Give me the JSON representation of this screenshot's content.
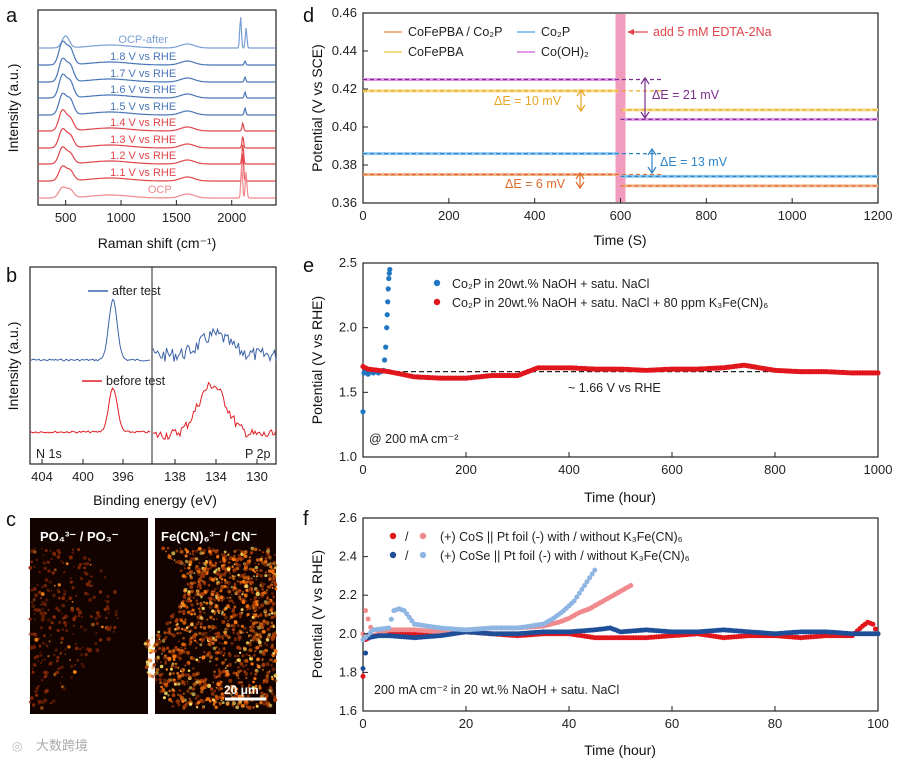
{
  "panels": {
    "a": "a",
    "b": "b",
    "c": "c",
    "d": "d",
    "e": "e",
    "f": "f"
  },
  "watermark": "大数跨境",
  "chart_data": [
    {
      "id": "a",
      "type": "line",
      "xlabel": "Raman shift (cm⁻¹)",
      "ylabel": "Intensity (a.u.)",
      "xlim": [
        250,
        2400
      ],
      "xticks": [
        500,
        1000,
        1500,
        2000
      ],
      "series": [
        {
          "name": "OCP-after",
          "color": "#7a9fd4",
          "peaks": [
            [
              500,
              12
            ],
            [
              2080,
              32
            ],
            [
              2130,
              20
            ]
          ]
        },
        {
          "name": "1.8 V vs RHE",
          "color": "#4a76b8",
          "peaks": [
            [
              470,
              22
            ],
            [
              540,
              16
            ],
            [
              2120,
              4
            ]
          ]
        },
        {
          "name": "1.7 V vs RHE",
          "color": "#4a76b8",
          "peaks": [
            [
              470,
              22
            ],
            [
              540,
              16
            ],
            [
              2120,
              5
            ]
          ]
        },
        {
          "name": "1.6 V vs RHE",
          "color": "#4a76b8",
          "peaks": [
            [
              470,
              22
            ],
            [
              540,
              16
            ],
            [
              2120,
              6
            ]
          ]
        },
        {
          "name": "1.5 V vs RHE",
          "color": "#4a76b8",
          "peaks": [
            [
              470,
              20
            ],
            [
              540,
              15
            ],
            [
              2120,
              7
            ]
          ]
        },
        {
          "name": "1.4 V vs RHE",
          "color": "#e0474c",
          "peaks": [
            [
              470,
              20
            ],
            [
              540,
              12
            ],
            [
              2100,
              8
            ]
          ]
        },
        {
          "name": "1.3 V vs RHE",
          "color": "#e0474c",
          "peaks": [
            [
              470,
              18
            ],
            [
              540,
              12
            ],
            [
              2100,
              12
            ]
          ]
        },
        {
          "name": "1.2 V vs RHE",
          "color": "#e0474c",
          "peaks": [
            [
              470,
              16
            ],
            [
              540,
              10
            ],
            [
              2100,
              20
            ]
          ]
        },
        {
          "name": "1.1 V vs RHE",
          "color": "#e0474c",
          "peaks": [
            [
              470,
              14
            ],
            [
              540,
              10
            ],
            [
              2100,
              28
            ]
          ]
        },
        {
          "name": "OCP",
          "color": "#f08a8c",
          "peaks": [
            [
              470,
              10
            ],
            [
              540,
              8
            ],
            [
              2090,
              34
            ],
            [
              2130,
              26
            ]
          ]
        }
      ]
    },
    {
      "id": "b",
      "type": "line",
      "xlabel": "Binding energy (eV)",
      "ylabel": "Intensity (a.u.)",
      "left_region": "N 1s",
      "right_region": "P 2p",
      "left_ticks": [
        404,
        400,
        396
      ],
      "right_ticks": [
        138,
        134,
        130
      ],
      "series": [
        {
          "name": "after test",
          "color": "#3d64a8"
        },
        {
          "name": "before test",
          "color": "#e01f26"
        }
      ]
    },
    {
      "id": "c",
      "type": "other",
      "maps": [
        "PO₄³⁻ / PO₃⁻",
        "Fe(CN)₆³⁻ / CN⁻"
      ],
      "scalebar": "20 μm"
    },
    {
      "id": "d",
      "type": "line",
      "xlabel": "Time (S)",
      "ylabel": "Potential (V vs SCE)",
      "xlim": [
        0,
        1200
      ],
      "ylim": [
        0.36,
        0.46
      ],
      "xticks": [
        0,
        200,
        400,
        600,
        800,
        1000,
        1200
      ],
      "yticks": [
        0.36,
        0.38,
        0.4,
        0.42,
        0.44,
        0.46
      ],
      "event": {
        "x": 600,
        "label": "add 5 mM EDTA-2Na"
      },
      "series": [
        {
          "name": "CoFePBA / Co₂P",
          "color": "#f2b48e",
          "before": 0.375,
          "after": 0.369
        },
        {
          "name": "Co₂P",
          "color": "#8ec8ef",
          "before": 0.386,
          "after": 0.374
        },
        {
          "name": "CoFePBA",
          "color": "#f6dc88",
          "before": 0.419,
          "after": 0.409
        },
        {
          "name": "Co(OH)₂",
          "color": "#e19ae6",
          "before": 0.425,
          "after": 0.404
        }
      ],
      "annotations": [
        {
          "label": "ΔE = 21 mV",
          "color": "#7b2e8e"
        },
        {
          "label": "ΔE = 10 mV",
          "color": "#e8a628"
        },
        {
          "label": "ΔE = 13 mV",
          "color": "#2e84c8"
        },
        {
          "label": "ΔE = 6 mV",
          "color": "#e06a2c"
        }
      ]
    },
    {
      "id": "e",
      "type": "scatter",
      "xlabel": "Time (hour)",
      "ylabel": "Potential (V vs RHE)",
      "xlim": [
        0,
        1000
      ],
      "ylim": [
        1.0,
        2.5
      ],
      "xticks": [
        0,
        200,
        400,
        600,
        800,
        1000
      ],
      "yticks": [
        1.0,
        1.5,
        2.0,
        2.5
      ],
      "reference": {
        "y": 1.66,
        "label": "~ 1.66 V vs RHE"
      },
      "condition": "@ 200 mA cm⁻²",
      "series": [
        {
          "name": "Co₂P in 20wt.% NaOH + satu. NaCl",
          "color": "#1f77c4",
          "x": [
            0,
            2,
            5,
            10,
            15,
            20,
            25,
            30,
            35,
            40,
            42,
            44,
            46,
            47,
            48,
            49,
            50,
            51,
            52
          ],
          "y": [
            1.35,
            1.65,
            1.66,
            1.64,
            1.66,
            1.65,
            1.66,
            1.65,
            1.66,
            1.67,
            1.75,
            1.85,
            2.0,
            2.1,
            2.2,
            2.3,
            2.38,
            2.42,
            2.45
          ]
        },
        {
          "name": "Co₂P in 20wt.% NaOH + satu. NaCl + 80 ppm K₃Fe(CN)₆",
          "color": "#e0161c",
          "x": [
            0,
            10,
            50,
            100,
            150,
            200,
            250,
            300,
            340,
            400,
            450,
            500,
            550,
            600,
            650,
            700,
            740,
            800,
            850,
            900,
            950,
            1000
          ],
          "y": [
            1.7,
            1.68,
            1.66,
            1.62,
            1.61,
            1.61,
            1.63,
            1.63,
            1.69,
            1.69,
            1.68,
            1.68,
            1.67,
            1.68,
            1.68,
            1.69,
            1.71,
            1.67,
            1.66,
            1.66,
            1.65,
            1.65
          ]
        }
      ]
    },
    {
      "id": "f",
      "type": "scatter",
      "xlabel": "Time (hour)",
      "ylabel": "Potential (V vs RHE)",
      "xlim": [
        0,
        100
      ],
      "ylim": [
        1.6,
        2.6
      ],
      "xticks": [
        0,
        20,
        40,
        60,
        80,
        100
      ],
      "yticks": [
        1.6,
        1.8,
        2.0,
        2.2,
        2.4,
        2.6
      ],
      "condition": "200 mA cm⁻² in 20 wt.% NaOH + satu. NaCl",
      "legend": [
        {
          "text": "(+) CoS   || Pt foil (-) with / without K₃Fe(CN)₆",
          "with": "#e0161c",
          "without": "#f08a8c"
        },
        {
          "text": "(+) CoSe || Pt foil (-) with / without K₃Fe(CN)₆",
          "with": "#1f4e99",
          "without": "#8fb6e3"
        }
      ],
      "separator": "/",
      "series": [
        {
          "name": "CoS with",
          "color": "#e0161c",
          "x": [
            0,
            0.5,
            2,
            5,
            10,
            15,
            20,
            25,
            30,
            35,
            40,
            45,
            50,
            55,
            60,
            65,
            70,
            75,
            80,
            85,
            90,
            95,
            97,
            98,
            99,
            100
          ],
          "y": [
            1.78,
            1.97,
            1.99,
            2.0,
            2.0,
            2.0,
            2.01,
            2.0,
            1.99,
            2.0,
            2.0,
            1.98,
            1.98,
            1.98,
            1.99,
            2.0,
            1.98,
            1.99,
            1.99,
            1.98,
            1.99,
            1.99,
            2.04,
            2.06,
            2.05,
            2.0
          ]
        },
        {
          "name": "CoS without",
          "color": "#f08a8c",
          "x": [
            0,
            0.5,
            2,
            5,
            10,
            15,
            20,
            25,
            30,
            35,
            38,
            40,
            42,
            44,
            46,
            48,
            50,
            52
          ],
          "y": [
            2.0,
            2.12,
            1.99,
            2.02,
            2.02,
            2.01,
            2.02,
            2.03,
            2.03,
            2.04,
            2.06,
            2.08,
            2.11,
            2.13,
            2.16,
            2.19,
            2.22,
            2.25
          ]
        },
        {
          "name": "CoSe with",
          "color": "#1f4e99",
          "x": [
            0,
            1,
            3,
            5,
            10,
            15,
            20,
            25,
            30,
            35,
            40,
            45,
            48,
            50,
            55,
            60,
            65,
            70,
            75,
            80,
            85,
            90,
            95,
            100
          ],
          "y": [
            1.82,
            1.98,
            1.99,
            1.99,
            1.98,
            1.99,
            2.01,
            2.0,
            2.0,
            2.01,
            2.01,
            2.02,
            2.03,
            2.01,
            2.02,
            2.01,
            2.01,
            2.02,
            2.01,
            2.0,
            2.01,
            2.01,
            2.0,
            2.0
          ]
        },
        {
          "name": "CoSe without",
          "color": "#8fb6e3",
          "x": [
            0,
            2,
            5,
            6,
            7,
            8,
            10,
            15,
            20,
            25,
            30,
            35,
            37,
            39,
            41,
            42,
            43,
            44,
            45
          ],
          "y": [
            1.97,
            2.02,
            2.03,
            2.12,
            2.13,
            2.12,
            2.05,
            2.03,
            2.02,
            2.03,
            2.03,
            2.05,
            2.08,
            2.12,
            2.17,
            2.21,
            2.25,
            2.29,
            2.33
          ]
        }
      ]
    }
  ]
}
